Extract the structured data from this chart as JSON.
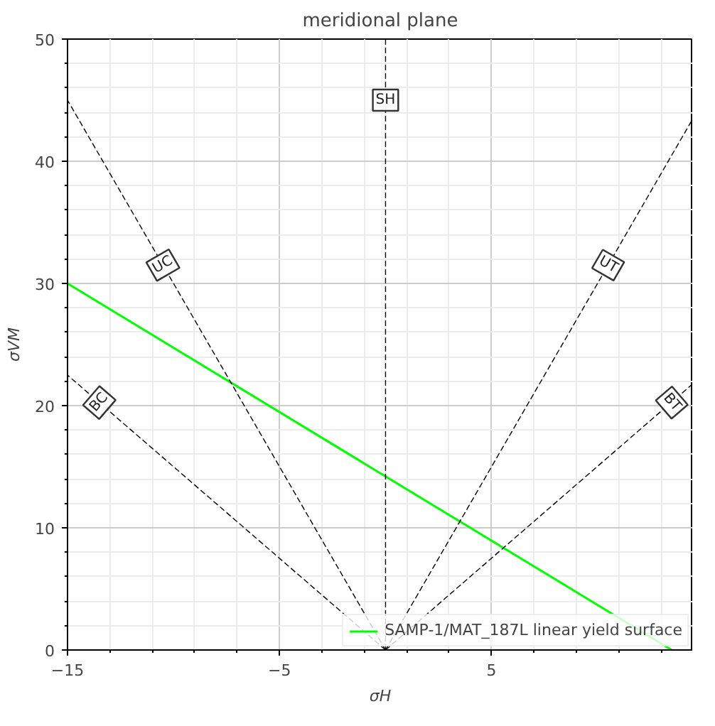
{
  "chart_data": {
    "type": "line",
    "title": "meridional plane",
    "xlabel": "σH",
    "ylabel": "σVM",
    "xlim": [
      -15,
      14.5
    ],
    "ylim": [
      0,
      50
    ],
    "xticks": [
      -15,
      -5,
      5
    ],
    "yticks": [
      0,
      10,
      20,
      30,
      40,
      50
    ],
    "grid": true,
    "legend": "bottom right",
    "series": [
      {
        "name": "SAMP-1/MAT_187L linear yield surface",
        "color": "#00ff00",
        "x": [
          -15,
          13.5
        ],
        "values": [
          30,
          0
        ],
        "line_style": "solid"
      },
      {
        "color": "#000000",
        "x": [
          0,
          0
        ],
        "values": [
          0,
          50
        ],
        "line_style": "dashed"
      },
      {
        "color": "#000000",
        "x": [
          0,
          -15
        ],
        "values": [
          0,
          45
        ],
        "line_style": "dashed"
      },
      {
        "color": "#000000",
        "x": [
          0,
          14.5
        ],
        "values": [
          0,
          43.5
        ],
        "line_style": "dashed"
      },
      {
        "color": "#000000",
        "x": [
          0,
          -15
        ],
        "values": [
          0,
          22.5
        ],
        "line_style": "dashed"
      },
      {
        "color": "#000000",
        "x": [
          0,
          14.5
        ],
        "values": [
          0,
          21.8
        ],
        "line_style": "dashed"
      }
    ],
    "annotations": [
      {
        "text": "SH",
        "x": 0,
        "y": 45
      },
      {
        "text": "UC",
        "x": -10.5,
        "y": 31.5
      },
      {
        "text": "UT",
        "x": 10.5,
        "y": 31.5
      },
      {
        "text": "BC",
        "x": -13.5,
        "y": 20.25
      },
      {
        "text": "BT",
        "x": 13.5,
        "y": 20.25
      }
    ]
  }
}
